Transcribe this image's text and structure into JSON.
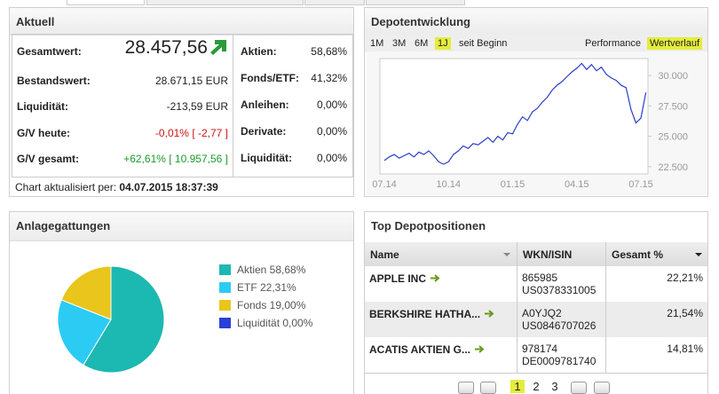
{
  "aktuell": {
    "title": "Aktuell",
    "rows": [
      {
        "label": "Gesamtwert:",
        "value": "28.457,56"
      },
      {
        "label": "Bestandswert:",
        "value": "28.671,15 EUR"
      },
      {
        "label": "Liquidität:",
        "value": "-213,59 EUR"
      },
      {
        "label": "G/V heute:",
        "value": "-0,01%",
        "abs": "[ -2,77 ]"
      },
      {
        "label": "G/V gesamt:",
        "value": "+62,61%",
        "abs": "[ 10.957,56 ]"
      }
    ],
    "allocation": [
      {
        "label": "Aktien:",
        "value": "58,68%"
      },
      {
        "label": "Fonds/ETF:",
        "value": "41,32%"
      },
      {
        "label": "Anleihen:",
        "value": "0,00%"
      },
      {
        "label": "Derivate:",
        "value": "0,00%"
      },
      {
        "label": "Liquidität:",
        "value": "0,00%"
      }
    ],
    "footer_label": "Chart aktualisiert per:",
    "footer_date": "04.07.2015 18:37:39"
  },
  "depot": {
    "title": "Depotentwicklung",
    "ranges": [
      "1M",
      "3M",
      "6M",
      "1J",
      "seit Beginn"
    ],
    "views": [
      "Performance",
      "Wertverlauf"
    ]
  },
  "anlage": {
    "title": "Anlagegattungen"
  },
  "top": {
    "title": "Top Depotpositionen",
    "columns": [
      "Name",
      "WKN/ISIN",
      "Gesamt %"
    ],
    "rows": [
      {
        "name": "APPLE INC",
        "wkn": "865985",
        "isin": "US0378331005",
        "share": "22,21%"
      },
      {
        "name": "BERKSHIRE HATHA...",
        "wkn": "A0YJQ2",
        "isin": "US0846707026",
        "share": "21,54%"
      },
      {
        "name": "ACATIS AKTIEN G...",
        "wkn": "978174",
        "isin": "DE0009781740",
        "share": "14,81%"
      }
    ],
    "pages": [
      "1",
      "2",
      "3"
    ]
  },
  "chart_data": [
    {
      "type": "line",
      "color": "#2b3ccc",
      "categories": [
        "07.14",
        null,
        null,
        null,
        null,
        null,
        null,
        null,
        null,
        null,
        null,
        null,
        null,
        "10.14",
        null,
        null,
        null,
        null,
        null,
        null,
        null,
        null,
        null,
        null,
        null,
        null,
        "01.15",
        null,
        null,
        null,
        null,
        null,
        null,
        null,
        null,
        null,
        null,
        null,
        null,
        "04.15",
        null,
        null,
        null,
        null,
        null,
        null,
        null,
        null,
        null,
        null,
        null,
        null,
        "07.15",
        null
      ],
      "values": [
        23000,
        23300,
        23500,
        23200,
        23400,
        23600,
        23300,
        23700,
        23500,
        23800,
        23400,
        22900,
        22700,
        22900,
        23500,
        23800,
        24200,
        24000,
        24400,
        24300,
        24600,
        24900,
        24500,
        25000,
        24700,
        25300,
        25200,
        26000,
        26600,
        26300,
        27000,
        27300,
        27800,
        28200,
        28800,
        29200,
        29500,
        29900,
        30300,
        30600,
        31000,
        30500,
        30900,
        30400,
        30700,
        30100,
        29800,
        29600,
        29200,
        29000,
        27200,
        26100,
        26500,
        28600
      ],
      "ylim": [
        21900,
        31400
      ],
      "yticks": [
        {
          "value": 22500,
          "label": "22.500"
        },
        {
          "value": 25000,
          "label": "25.000"
        },
        {
          "value": 27500,
          "label": "27.500"
        },
        {
          "value": 30000,
          "label": "30.000"
        }
      ]
    },
    {
      "type": "pie",
      "categories": [
        "Aktien 58,68%",
        "ETF 22,31%",
        "Fonds 19,00%",
        "Liquidität 0,00%"
      ],
      "values": [
        58.68,
        22.31,
        19.0,
        0.0
      ],
      "colors": [
        "#1cb8b2",
        "#2ccbf3",
        "#eac51b",
        "#2a3fd8"
      ]
    }
  ]
}
